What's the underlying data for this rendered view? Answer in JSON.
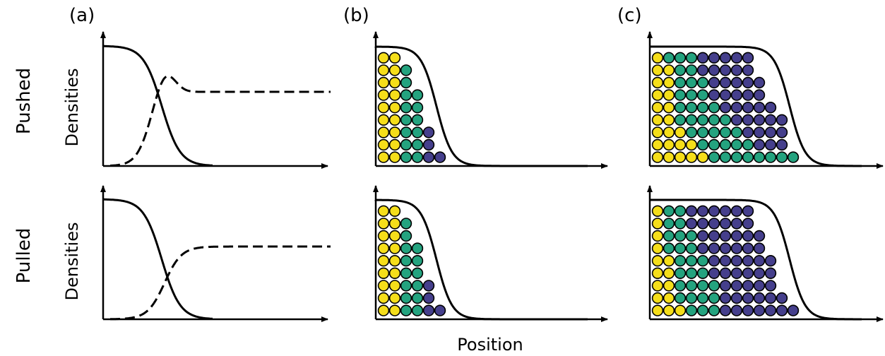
{
  "panel_labels": [
    "(a)",
    "(b)",
    "(c)"
  ],
  "row_labels": [
    "Pushed",
    "Pulled"
  ],
  "ylabel": "Densities",
  "xlabel": "Position",
  "colors": {
    "yellow": "#f5de1a",
    "green": "#24a37f",
    "purple": "#453f8c",
    "line": "#000000"
  },
  "panels_a": [
    {
      "row": "Pushed",
      "solid": "front",
      "dashed": "bump"
    },
    {
      "row": "Pulled",
      "solid": "front",
      "dashed": "sigmoid"
    }
  ],
  "panels_b": [
    {
      "row": "Pushed",
      "rows": [
        [
          "Y",
          "Y"
        ],
        [
          "Y",
          "Y",
          "G"
        ],
        [
          "Y",
          "Y",
          "G"
        ],
        [
          "Y",
          "Y",
          "G",
          "G"
        ],
        [
          "Y",
          "Y",
          "G",
          "G"
        ],
        [
          "Y",
          "Y",
          "G",
          "G"
        ],
        [
          "Y",
          "Y",
          "G",
          "G",
          "P"
        ],
        [
          "Y",
          "Y",
          "G",
          "G",
          "P"
        ],
        [
          "Y",
          "Y",
          "G",
          "G",
          "P",
          "P"
        ]
      ]
    },
    {
      "row": "Pulled",
      "rows": [
        [
          "Y",
          "Y"
        ],
        [
          "Y",
          "Y",
          "G"
        ],
        [
          "Y",
          "Y",
          "G"
        ],
        [
          "Y",
          "Y",
          "G",
          "G"
        ],
        [
          "Y",
          "Y",
          "G",
          "G"
        ],
        [
          "Y",
          "Y",
          "G",
          "G"
        ],
        [
          "Y",
          "Y",
          "G",
          "G",
          "P"
        ],
        [
          "Y",
          "Y",
          "G",
          "G",
          "P"
        ],
        [
          "Y",
          "Y",
          "G",
          "G",
          "P",
          "P"
        ]
      ]
    }
  ],
  "panels_c": [
    {
      "row": "Pushed",
      "rows": [
        [
          "Y",
          "G",
          "G",
          "G",
          "P",
          "P",
          "P",
          "P",
          "P"
        ],
        [
          "Y",
          "Y",
          "G",
          "G",
          "P",
          "P",
          "P",
          "P",
          "P"
        ],
        [
          "Y",
          "Y",
          "G",
          "G",
          "G",
          "P",
          "P",
          "P",
          "P",
          "P"
        ],
        [
          "Y",
          "Y",
          "G",
          "G",
          "G",
          "P",
          "P",
          "P",
          "P",
          "P"
        ],
        [
          "Y",
          "Y",
          "G",
          "G",
          "G",
          "G",
          "P",
          "P",
          "P",
          "P",
          "P"
        ],
        [
          "Y",
          "Y",
          "G",
          "G",
          "G",
          "G",
          "G",
          "P",
          "P",
          "P",
          "P",
          "P"
        ],
        [
          "Y",
          "Y",
          "Y",
          "G",
          "G",
          "G",
          "G",
          "G",
          "P",
          "P",
          "P",
          "P"
        ],
        [
          "Y",
          "Y",
          "Y",
          "Y",
          "G",
          "G",
          "G",
          "G",
          "G",
          "P",
          "P",
          "P"
        ],
        [
          "Y",
          "Y",
          "Y",
          "Y",
          "Y",
          "G",
          "G",
          "G",
          "G",
          "G",
          "G",
          "G",
          "G"
        ]
      ]
    },
    {
      "row": "Pulled",
      "rows": [
        [
          "Y",
          "G",
          "G",
          "P",
          "P",
          "P",
          "P",
          "P",
          "P"
        ],
        [
          "Y",
          "G",
          "G",
          "P",
          "P",
          "P",
          "P",
          "P",
          "P"
        ],
        [
          "Y",
          "G",
          "G",
          "G",
          "P",
          "P",
          "P",
          "P",
          "P",
          "P"
        ],
        [
          "Y",
          "G",
          "G",
          "G",
          "P",
          "P",
          "P",
          "P",
          "P",
          "P"
        ],
        [
          "Y",
          "Y",
          "G",
          "G",
          "G",
          "P",
          "P",
          "P",
          "P",
          "P",
          "P"
        ],
        [
          "Y",
          "Y",
          "G",
          "G",
          "G",
          "P",
          "P",
          "P",
          "P",
          "P",
          "P"
        ],
        [
          "Y",
          "Y",
          "G",
          "G",
          "G",
          "G",
          "P",
          "P",
          "P",
          "P",
          "P"
        ],
        [
          "Y",
          "Y",
          "G",
          "G",
          "G",
          "G",
          "P",
          "P",
          "P",
          "P",
          "P",
          "P"
        ],
        [
          "Y",
          "Y",
          "Y",
          "G",
          "G",
          "G",
          "P",
          "P",
          "P",
          "P",
          "P",
          "P",
          "P"
        ]
      ]
    }
  ]
}
